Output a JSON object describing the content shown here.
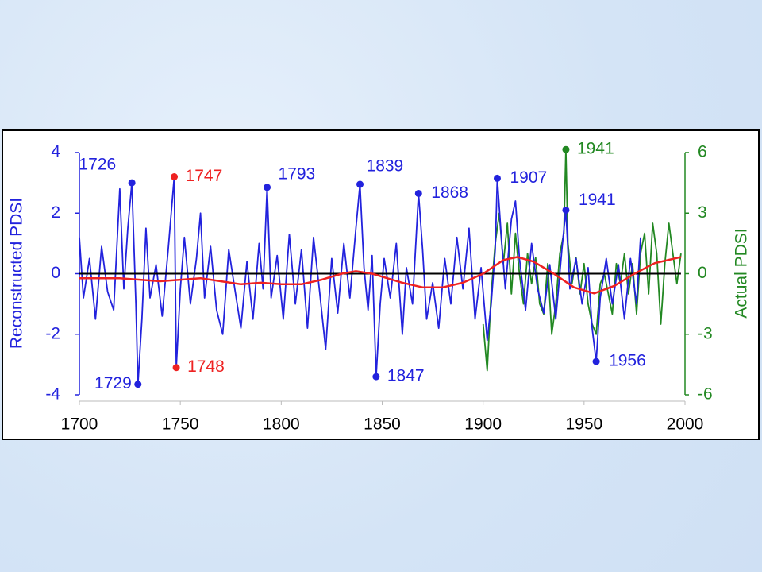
{
  "chart_data": {
    "type": "line",
    "ylabel": "Reconstructed PDSI",
    "y2label": "Actual PDSI",
    "xlim": [
      1700,
      2000
    ],
    "xticks": [
      1700,
      1750,
      1800,
      1850,
      1900,
      1950,
      2000
    ],
    "ylim": [
      -4,
      4
    ],
    "yticks": [
      -4,
      -2,
      0,
      2,
      4
    ],
    "y2lim": [
      -6,
      6
    ],
    "y2ticks": [
      -6,
      -3,
      0,
      3,
      6
    ],
    "reference_line": 0,
    "series": [
      {
        "color": "#2222dd",
        "x": [
          1700,
          1702,
          1705,
          1708,
          1711,
          1714,
          1717,
          1720,
          1722,
          1724,
          1726,
          1728,
          1729,
          1731,
          1733,
          1735,
          1738,
          1741,
          1744,
          1747,
          1748,
          1750,
          1752,
          1755,
          1758,
          1760,
          1762,
          1765,
          1768,
          1771,
          1774,
          1777,
          1780,
          1783,
          1786,
          1789,
          1791,
          1793,
          1795,
          1798,
          1801,
          1804,
          1807,
          1810,
          1813,
          1816,
          1819,
          1822,
          1825,
          1828,
          1831,
          1834,
          1837,
          1839,
          1841,
          1843,
          1845,
          1847,
          1849,
          1851,
          1854,
          1857,
          1860,
          1862,
          1865,
          1868,
          1870,
          1872,
          1875,
          1878,
          1881,
          1884,
          1887,
          1890,
          1893,
          1896,
          1899,
          1902,
          1904,
          1906,
          1907,
          1909,
          1911,
          1914,
          1916,
          1918,
          1921,
          1924,
          1927,
          1930,
          1933,
          1936,
          1939,
          1941,
          1943,
          1946,
          1949,
          1952,
          1954,
          1956,
          1958,
          1961,
          1964,
          1967,
          1970,
          1973,
          1976,
          1978
        ],
        "values": [
          1.2,
          -0.8,
          0.5,
          -1.5,
          0.9,
          -0.6,
          -1.2,
          2.8,
          -0.5,
          1.5,
          3.0,
          -1.0,
          -3.65,
          -1.5,
          1.5,
          -0.8,
          0.3,
          -1.4,
          0.8,
          3.2,
          -3.1,
          -0.5,
          1.2,
          -1.0,
          0.5,
          2.0,
          -0.8,
          0.9,
          -1.2,
          -2.0,
          0.8,
          -0.5,
          -1.8,
          0.4,
          -1.5,
          1.0,
          -0.5,
          2.85,
          -0.8,
          0.6,
          -1.5,
          1.3,
          -1.0,
          0.8,
          -1.8,
          1.2,
          -0.6,
          -2.5,
          0.5,
          -1.3,
          1.0,
          -0.8,
          1.5,
          2.95,
          0.2,
          -1.2,
          0.6,
          -3.4,
          -1.0,
          0.5,
          -0.8,
          1.0,
          -2.0,
          0.2,
          -1.0,
          2.65,
          0.8,
          -1.5,
          -0.3,
          -1.8,
          0.5,
          -1.0,
          1.2,
          -0.5,
          1.5,
          -1.5,
          0.2,
          -2.2,
          -1.0,
          0.8,
          3.15,
          1.2,
          -0.5,
          1.8,
          2.4,
          0.5,
          -1.2,
          1.0,
          -0.5,
          -1.3,
          0.3,
          -1.5,
          0.8,
          2.1,
          -0.5,
          0.5,
          -1.0,
          0.2,
          -1.8,
          -2.9,
          -0.8,
          0.5,
          -1.0,
          0.3,
          -1.5,
          0.5,
          -1.0,
          1.2
        ]
      },
      {
        "color": "#228822",
        "axis": "y2",
        "x": [
          1900,
          1902,
          1904,
          1906,
          1908,
          1910,
          1912,
          1914,
          1916,
          1918,
          1920,
          1922,
          1924,
          1926,
          1928,
          1930,
          1932,
          1934,
          1936,
          1938,
          1940,
          1941,
          1942,
          1944,
          1946,
          1948,
          1950,
          1952,
          1954,
          1956,
          1958,
          1960,
          1962,
          1964,
          1966,
          1968,
          1970,
          1972,
          1974,
          1976,
          1978,
          1980,
          1982,
          1984,
          1986,
          1988,
          1990,
          1992,
          1994,
          1996,
          1998
        ],
        "values": [
          -2.5,
          -4.8,
          -1.0,
          1.5,
          3.0,
          0.5,
          2.5,
          -1.0,
          2.0,
          0.0,
          -1.5,
          1.0,
          -0.5,
          0.8,
          -1.5,
          -2.0,
          0.5,
          -3.0,
          -1.5,
          1.0,
          2.0,
          6.15,
          1.5,
          -0.5,
          0.8,
          -1.0,
          0.5,
          -1.5,
          -2.5,
          -3.0,
          -0.5,
          0.0,
          -1.0,
          -2.0,
          0.5,
          -0.5,
          1.0,
          -1.0,
          0.5,
          -2.0,
          1.0,
          2.0,
          -1.0,
          2.5,
          1.0,
          -2.5,
          0.5,
          2.5,
          1.0,
          -0.5,
          1.0
        ]
      },
      {
        "color": "#ee2222",
        "x": [
          1700,
          1710,
          1720,
          1730,
          1740,
          1750,
          1760,
          1770,
          1780,
          1790,
          1800,
          1810,
          1820,
          1830,
          1837,
          1845,
          1850,
          1860,
          1870,
          1880,
          1890,
          1900,
          1910,
          1917,
          1925,
          1935,
          1945,
          1955,
          1965,
          1975,
          1985,
          1998
        ],
        "values": [
          -0.15,
          -0.15,
          -0.15,
          -0.2,
          -0.25,
          -0.2,
          -0.15,
          -0.25,
          -0.35,
          -0.3,
          -0.35,
          -0.35,
          -0.2,
          0.0,
          0.08,
          0.0,
          -0.1,
          -0.3,
          -0.45,
          -0.45,
          -0.3,
          0.0,
          0.45,
          0.55,
          0.4,
          0.0,
          -0.45,
          -0.65,
          -0.4,
          0.0,
          0.35,
          0.55
        ]
      }
    ],
    "annotations": [
      {
        "x": 1726,
        "y": 3.0,
        "color": "#2222dd"
      },
      {
        "x": 1729,
        "y": -3.65,
        "color": "#2222dd"
      },
      {
        "x": 1747,
        "y": 3.2,
        "color": "#ee2222"
      },
      {
        "x": 1748,
        "y": -3.1,
        "color": "#ee2222"
      },
      {
        "x": 1793,
        "y": 2.85,
        "color": "#2222dd"
      },
      {
        "x": 1839,
        "y": 2.95,
        "color": "#2222dd"
      },
      {
        "x": 1847,
        "y": -3.4,
        "color": "#2222dd"
      },
      {
        "x": 1868,
        "y": 2.65,
        "color": "#2222dd"
      },
      {
        "x": 1907,
        "y": 3.15,
        "color": "#2222dd"
      },
      {
        "x": 1941,
        "y": 2.1,
        "color": "#2222dd"
      },
      {
        "x": 1956,
        "y": -2.9,
        "color": "#2222dd"
      },
      {
        "x": 1941,
        "y": 6.15,
        "color": "#228822",
        "axis": "y2"
      }
    ]
  }
}
